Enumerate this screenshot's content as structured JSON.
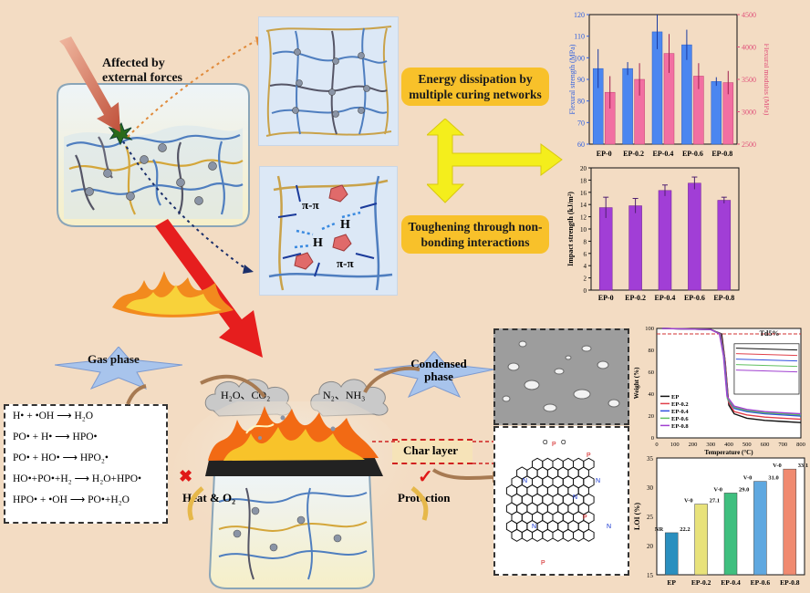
{
  "labels": {
    "affected": "Affected by external forces",
    "energy": "Energy dissipation by multiple curing networks",
    "toughening": "Toughening through non-bonding interactions",
    "gas_phase": "Gas phase",
    "condensed_phase": "Condensed phase",
    "cloud1": "H₂O、CO₂",
    "cloud2": "N₂、NH₃",
    "char_layer": "Char layer",
    "heat": "Heat & O₂",
    "protection": "Protection",
    "pi1": "π-π",
    "pi2": "π-π",
    "h1": "H",
    "h2": "H"
  },
  "reactions": [
    "H• + •OH ⟶ H₂O",
    "PO• + H• ⟶ HPO•",
    "PO• + HO• ⟶ HPO₂•",
    "HO•+PO•+H₂ ⟶ H₂O+HPO•",
    "HPO• + •OH ⟶ PO•+H₂O"
  ],
  "colors": {
    "background": "#f3dcc3",
    "pill": "#f8c12a",
    "blue_bar": "#4b86f0",
    "pink_bar": "#f26fa2",
    "purple_bar": "#a13ed6"
  },
  "chart_data": [
    {
      "type": "bar",
      "categories": [
        "EP-0",
        "EP-0.2",
        "EP-0.4",
        "EP-0.6",
        "EP-0.8"
      ],
      "ylabel": "Flexural strength (MPa)",
      "ylabel2": "Flexural modulus (MPa)",
      "ylim": [
        60,
        120
      ],
      "ylim2": [
        2500,
        4500
      ],
      "yticks": [
        60,
        70,
        80,
        90,
        100,
        110,
        120
      ],
      "y2ticks": [
        2500,
        3000,
        3500,
        4000,
        4500
      ],
      "series": [
        {
          "values": [
            95,
            95,
            112,
            106,
            89
          ],
          "errors": [
            9,
            3,
            8,
            7,
            2
          ],
          "axis": "left"
        },
        {
          "values": [
            3300,
            3500,
            3900,
            3550,
            3450
          ],
          "errors": [
            250,
            250,
            300,
            200,
            180
          ],
          "axis": "right"
        }
      ]
    },
    {
      "type": "bar",
      "categories": [
        "EP-0",
        "EP-0.2",
        "EP-0.4",
        "EP-0.6",
        "EP-0.8"
      ],
      "ylabel": "Impact strength (kJ/m²)",
      "ylim": [
        0,
        20
      ],
      "yticks": [
        0,
        2,
        4,
        6,
        8,
        10,
        12,
        14,
        16,
        18,
        20
      ],
      "series": [
        {
          "values": [
            13.5,
            13.8,
            16.3,
            17.5,
            14.7
          ],
          "errors": [
            1.7,
            1.2,
            0.9,
            1.0,
            0.5
          ]
        }
      ]
    },
    {
      "type": "line",
      "xlabel": "Temperature (°C)",
      "ylabel": "Weight (%)",
      "xlim": [
        0,
        800
      ],
      "ylim": [
        0,
        100
      ],
      "xticks": [
        0,
        100,
        200,
        300,
        400,
        500,
        600,
        700,
        800
      ],
      "yticks": [
        0,
        20,
        40,
        60,
        80,
        100
      ],
      "annotation": "Td5%",
      "series": [
        {
          "name": "EP",
          "color": "#111111",
          "points": [
            [
              30,
              100
            ],
            [
              300,
              99
            ],
            [
              360,
              95
            ],
            [
              380,
              70
            ],
            [
              400,
              30
            ],
            [
              430,
              22
            ],
            [
              500,
              18
            ],
            [
              600,
              16
            ],
            [
              700,
              15
            ],
            [
              800,
              14
            ]
          ]
        },
        {
          "name": "EP-0.2",
          "color": "#e0404a",
          "points": [
            [
              30,
              100
            ],
            [
              300,
              99
            ],
            [
              355,
              95
            ],
            [
              378,
              72
            ],
            [
              398,
              33
            ],
            [
              430,
              24
            ],
            [
              500,
              21
            ],
            [
              600,
              19
            ],
            [
              700,
              18
            ],
            [
              800,
              17
            ]
          ]
        },
        {
          "name": "EP-0.4",
          "color": "#3050e0",
          "points": [
            [
              30,
              100
            ],
            [
              300,
              99
            ],
            [
              352,
              95
            ],
            [
              375,
              73
            ],
            [
              395,
              35
            ],
            [
              430,
              27
            ],
            [
              500,
              24
            ],
            [
              600,
              22
            ],
            [
              700,
              21
            ],
            [
              800,
              20
            ]
          ]
        },
        {
          "name": "EP-0.6",
          "color": "#60c060",
          "points": [
            [
              30,
              100
            ],
            [
              300,
              99
            ],
            [
              350,
              95
            ],
            [
              372,
              74
            ],
            [
              392,
              36
            ],
            [
              430,
              28
            ],
            [
              500,
              25
            ],
            [
              600,
              23
            ],
            [
              700,
              22
            ],
            [
              800,
              21
            ]
          ]
        },
        {
          "name": "EP-0.8",
          "color": "#a040d0",
          "points": [
            [
              30,
              100
            ],
            [
              300,
              99
            ],
            [
              348,
              95
            ],
            [
              370,
              75
            ],
            [
              390,
              38
            ],
            [
              430,
              29
            ],
            [
              500,
              26
            ],
            [
              600,
              24
            ],
            [
              700,
              23
            ],
            [
              800,
              22
            ]
          ]
        }
      ]
    },
    {
      "type": "bar",
      "categories": [
        "EP",
        "EP-0.2",
        "EP-0.4",
        "EP-0.6",
        "EP-0.8"
      ],
      "ylabel": "LOI (%)",
      "ylim": [
        15,
        35
      ],
      "yticks": [
        15,
        20,
        25,
        30,
        35
      ],
      "values": [
        22.2,
        27.1,
        29.0,
        31.0,
        33.1
      ],
      "ratings": [
        "NR",
        "V-0",
        "V-0",
        "V-0",
        "V-0"
      ],
      "colors": [
        "#2a8fbf",
        "#e8e27a",
        "#3fbf7f",
        "#5fa8e0",
        "#f08a70"
      ]
    }
  ]
}
